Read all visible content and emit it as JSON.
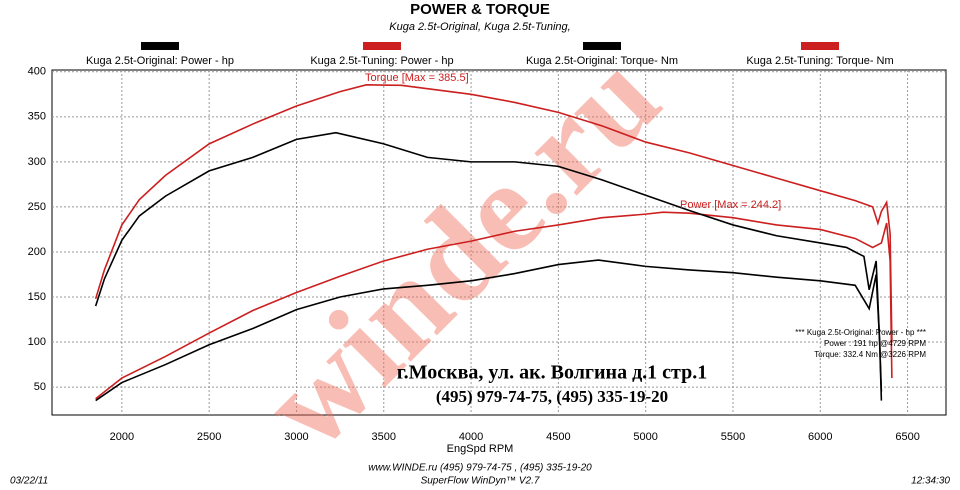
{
  "chart_data": {
    "type": "line",
    "title": "POWER & TORQUE",
    "subtitle": "Kuga 2.5t-Original, Kuga 2.5t-Tuning,",
    "x_label": "EngSpd  RPM",
    "xlim": [
      1600,
      6720
    ],
    "ylim": [
      19,
      402
    ],
    "xticks": [
      2000,
      2500,
      3000,
      3500,
      4000,
      4500,
      5000,
      5500,
      6000,
      6500
    ],
    "yticks": [
      50,
      100,
      150,
      200,
      250,
      300,
      350,
      400
    ],
    "grid": true,
    "series": [
      {
        "name": "Kuga 2.5t-Original: Power -  hp",
        "color": "#000000",
        "x": [
          1850,
          2000,
          2250,
          2500,
          2750,
          3000,
          3250,
          3500,
          3750,
          4000,
          4250,
          4500,
          4729,
          5000,
          5250,
          5500,
          5750,
          6000,
          6200,
          6280,
          6320,
          6340,
          6350
        ],
        "values": [
          35,
          55,
          75,
          97,
          115,
          136,
          150,
          159,
          163,
          168,
          176,
          186,
          191,
          184,
          180,
          177,
          172,
          168,
          163,
          137,
          175,
          100,
          45
        ]
      },
      {
        "name": "Kuga 2.5t-Tuning: Power -  hp",
        "color": "#cc1f1f",
        "x": [
          1850,
          2000,
          2250,
          2500,
          2750,
          3000,
          3250,
          3500,
          3750,
          4000,
          4250,
          4500,
          4750,
          5000,
          5100,
          5250,
          5500,
          5750,
          6000,
          6200,
          6300,
          6350,
          6380,
          6400,
          6410
        ],
        "values": [
          37,
          60,
          84,
          110,
          135,
          155,
          173,
          190,
          203,
          212,
          223,
          230,
          238,
          242,
          244.2,
          243,
          238,
          230,
          225,
          215,
          205,
          210,
          232,
          190,
          60
        ]
      },
      {
        "name": "Kuga 2.5t-Original: Torque-  Nm",
        "color": "#000000",
        "x": [
          1850,
          1900,
          2000,
          2100,
          2250,
          2500,
          2750,
          3000,
          3226,
          3500,
          3750,
          4000,
          4250,
          4500,
          4750,
          5000,
          5250,
          5500,
          5750,
          6000,
          6150,
          6250,
          6280,
          6320,
          6340,
          6350
        ],
        "values": [
          140,
          170,
          213,
          240,
          262,
          290,
          305,
          325,
          332.4,
          320,
          305,
          300,
          300,
          295,
          280,
          263,
          246,
          230,
          218,
          210,
          205,
          195,
          158,
          190,
          100,
          35
        ]
      },
      {
        "name": "Kuga 2.5t-Tuning: Torque-  Nm",
        "color": "#cc1f1f",
        "x": [
          1850,
          1900,
          2000,
          2100,
          2250,
          2500,
          2750,
          3000,
          3250,
          3400,
          3600,
          3800,
          4000,
          4250,
          4500,
          4750,
          5000,
          5250,
          5500,
          5750,
          6000,
          6200,
          6300,
          6330,
          6350,
          6380,
          6400,
          6410
        ],
        "values": [
          148,
          180,
          230,
          258,
          285,
          320,
          342,
          362,
          378,
          385.5,
          385,
          380,
          375,
          366,
          355,
          340,
          322,
          310,
          296,
          282,
          268,
          257,
          250,
          232,
          245,
          255,
          220,
          100
        ]
      }
    ],
    "annotations": [
      "Torque [Max = 385.5]",
      "Power  [Max = 244.2]",
      "***  Kuga 2.5t-Original: Power -  hp  ***",
      "Power :   191 hp   @4729 RPM",
      "Torque:  332.4 Nm   @3226 RPM",
      "г.Москва, ул. ак. Волгина д.1 стр.1",
      "(495) 979-74-75, (495) 335-19-20",
      "winde.ru"
    ],
    "footer": [
      "03/22/11",
      "www.WINDE.ru  (495) 979-74-75 , (495) 335-19-20",
      "SuperFlow WinDyn™ V2.7",
      "12:34:30"
    ]
  }
}
